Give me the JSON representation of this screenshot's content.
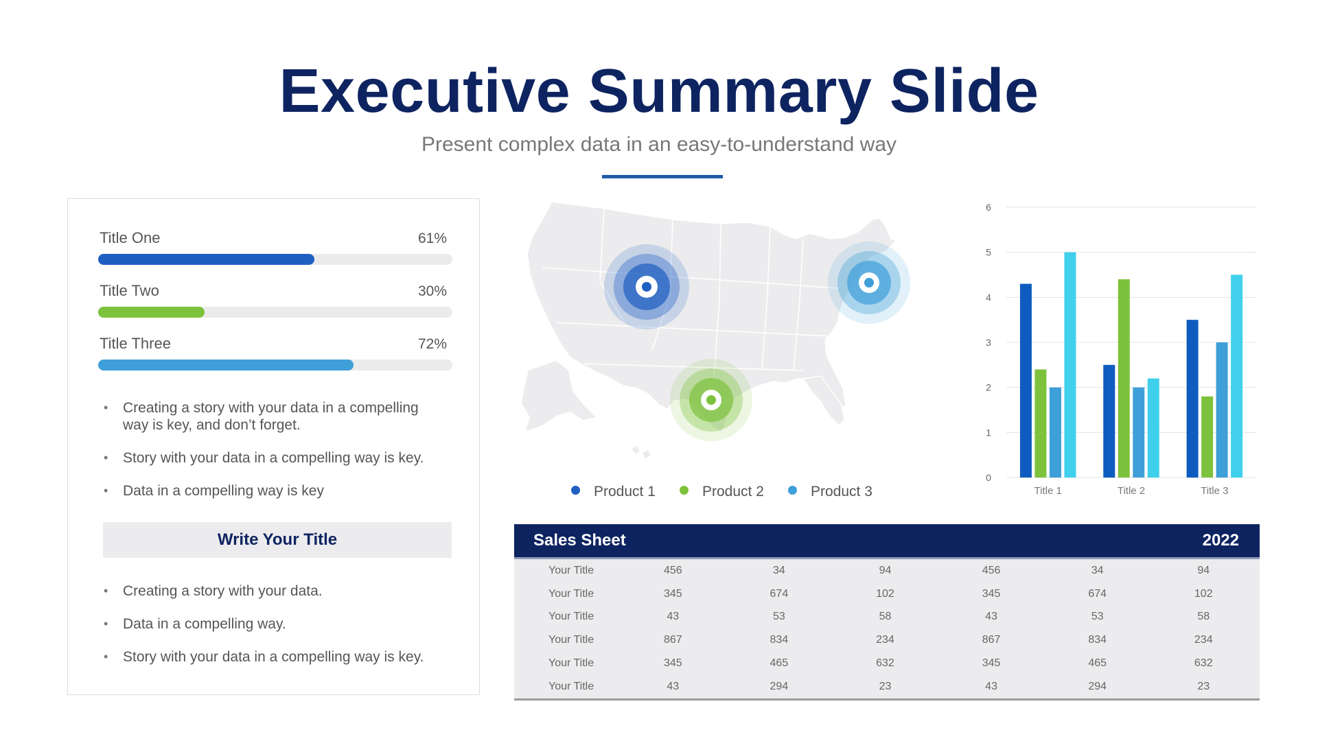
{
  "header": {
    "title": "Executive Summary Slide",
    "subtitle": "Present complex data in an easy-to-understand way"
  },
  "left_panel": {
    "progress": [
      {
        "label": "Title One",
        "percent_label": "61%",
        "value": 0.61,
        "color": "#1e5fc2"
      },
      {
        "label": "Title Two",
        "percent_label": "30%",
        "value": 0.3,
        "color": "#7dc23c"
      },
      {
        "label": "Title Three",
        "percent_label": "72%",
        "value": 0.72,
        "color": "#3f9fd8"
      }
    ],
    "bullets_top": [
      "Creating a story with your data in a compelling way is key, and don’t forget.",
      "Story with your data in a compelling way is key.",
      "Data in a compelling way is key"
    ],
    "box_title": "Write Your Title",
    "bullets_bottom": [
      "Creating a story with your data.",
      "Data in a compelling way.",
      "Story with your data in a compelling way is key."
    ]
  },
  "map": {
    "legend": [
      {
        "label": "Product 1",
        "color": "#1e5fc2"
      },
      {
        "label": "Product 2",
        "color": "#7dc23c"
      },
      {
        "label": "Product 3",
        "color": "#3f9fd8"
      }
    ],
    "markers": [
      {
        "name": "product-1-marker",
        "color": "#1e5fc2"
      },
      {
        "name": "product-3-marker",
        "color": "#3f9fd8"
      },
      {
        "name": "product-2-marker",
        "color": "#7dc23c"
      }
    ]
  },
  "chart_data": {
    "type": "bar",
    "categories": [
      "Title 1",
      "Title 2",
      "Title 3"
    ],
    "series": [
      {
        "values": [
          4.3,
          2.5,
          3.5
        ],
        "color": "#0e5cbf"
      },
      {
        "values": [
          2.4,
          4.4,
          1.8
        ],
        "color": "#7dc23c"
      },
      {
        "values": [
          2.0,
          2.0,
          3.0
        ],
        "color": "#3f9fd8"
      },
      {
        "values": [
          5.0,
          2.2,
          4.5
        ],
        "color": "#40d0ec"
      }
    ],
    "ylim": [
      0,
      6
    ],
    "yticks": [
      0,
      1,
      2,
      3,
      4,
      5,
      6
    ],
    "grid": true,
    "title": "",
    "xlabel": "",
    "ylabel": ""
  },
  "sales_sheet": {
    "title": "Sales Sheet",
    "year": "2022",
    "rows": [
      [
        "Your Title",
        "456",
        "34",
        "94",
        "456",
        "34",
        "94"
      ],
      [
        "Your Title",
        "345",
        "674",
        "102",
        "345",
        "674",
        "102"
      ],
      [
        "Your Title",
        "43",
        "53",
        "58",
        "43",
        "53",
        "58"
      ],
      [
        "Your Title",
        "867",
        "834",
        "234",
        "867",
        "834",
        "234"
      ],
      [
        "Your Title",
        "345",
        "465",
        "632",
        "345",
        "465",
        "632"
      ],
      [
        "Your Title",
        "43",
        "294",
        "23",
        "43",
        "294",
        "23"
      ]
    ]
  }
}
